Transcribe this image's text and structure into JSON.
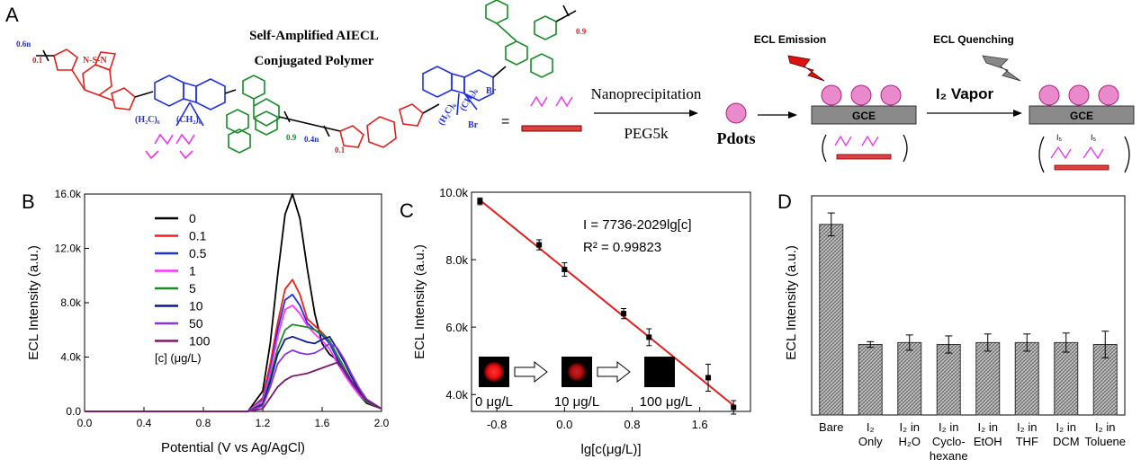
{
  "panelA": {
    "label": "A",
    "polymer_title_line1": "Self-Amplified AIECL",
    "polymer_title_line2": "Conjugated Polymer",
    "subscripts": {
      "n06": "0.6n",
      "p01": "0.1",
      "p09": "0.9",
      "n04": "0.4n",
      "p01b": "0.1",
      "p09b": "0.9"
    },
    "chain_labels": {
      "left1": "(H₂C)₆",
      "left2": "(CH₂)₆",
      "right1": "(CH₂)₆",
      "right2": "(H₂C)₆",
      "br1": "Br",
      "br2": "Br",
      "ring": "N-S-N"
    },
    "equals": "=",
    "step1_top": "Nanoprecipitation",
    "step1_bottom": "PEG5k",
    "pdots": "Pdots",
    "emission": "ECL Emission",
    "quenching": "ECL Quenching",
    "vapor": "I₂ Vapor",
    "gce1": "GCE",
    "gce2": "GCE",
    "i5a": "I₅",
    "i5b": "I₅"
  },
  "panelB": {
    "label": "B",
    "chart_data": {
      "type": "line",
      "xlabel": "Potential (V vs Ag/AgCl)",
      "ylabel": "ECL Intensity (a.u.)",
      "xlim": [
        0.0,
        2.0
      ],
      "ylim": [
        0,
        16000
      ],
      "xticks": [
        "0.0",
        "0.4",
        "0.8",
        "1.2",
        "1.6",
        "2.0"
      ],
      "yticks": [
        "0.0",
        "4.0k",
        "8.0k",
        "12.0k",
        "16.0k"
      ],
      "legend_title": "[c] (μg/L)",
      "x": [
        0.0,
        1.1,
        1.2,
        1.25,
        1.3,
        1.35,
        1.4,
        1.45,
        1.5,
        1.55,
        1.6,
        1.65,
        1.7,
        1.75,
        1.8,
        1.85,
        1.9,
        2.0
      ],
      "series": [
        {
          "name": "0",
          "color": "#000000",
          "values": [
            0,
            0,
            1500,
            5000,
            10000,
            14500,
            16000,
            14200,
            10500,
            7200,
            5000,
            4200,
            3800,
            3000,
            2000,
            1200,
            600,
            200
          ]
        },
        {
          "name": "0.1",
          "color": "#ee2020",
          "values": [
            0,
            0,
            1000,
            3500,
            6500,
            9000,
            9700,
            8600,
            6800,
            6300,
            5800,
            5200,
            4000,
            3000,
            2000,
            1300,
            700,
            200
          ]
        },
        {
          "name": "0.5",
          "color": "#2030dd",
          "values": [
            0,
            0,
            900,
            3000,
            6000,
            8200,
            8600,
            7800,
            6500,
            6000,
            5600,
            5000,
            3900,
            2900,
            2000,
            1300,
            700,
            200
          ]
        },
        {
          "name": "1",
          "color": "#ff33ff",
          "values": [
            0,
            0,
            800,
            2800,
            5500,
            7500,
            7800,
            7200,
            6300,
            5700,
            5200,
            4600,
            3600,
            2700,
            1900,
            1200,
            700,
            200
          ]
        },
        {
          "name": "5",
          "color": "#1a8a2a",
          "values": [
            0,
            0,
            600,
            2400,
            4600,
            6000,
            6400,
            6300,
            6200,
            6000,
            5700,
            5200,
            4200,
            3200,
            2200,
            1400,
            700,
            200
          ]
        },
        {
          "name": "10",
          "color": "#0a1a8a",
          "values": [
            0,
            0,
            500,
            2200,
            4200,
            5300,
            5500,
            5300,
            5100,
            5000,
            5300,
            5500,
            4600,
            3600,
            2500,
            1500,
            800,
            200
          ]
        },
        {
          "name": "50",
          "color": "#8a33dd",
          "values": [
            0,
            0,
            400,
            1800,
            3500,
            4200,
            4500,
            4300,
            4200,
            4300,
            4600,
            5000,
            4700,
            3800,
            2700,
            1700,
            900,
            200
          ]
        },
        {
          "name": "100",
          "color": "#7a1a6a",
          "values": [
            0,
            0,
            200,
            1000,
            1800,
            2300,
            2600,
            2700,
            2800,
            3000,
            3200,
            3400,
            3600,
            3000,
            2200,
            1400,
            800,
            200
          ]
        }
      ]
    }
  },
  "panelC": {
    "label": "C",
    "chart_data": {
      "type": "scatter",
      "xlabel": "lg[c(μg/L)]",
      "ylabel": "ECL Intensity (a.u.)",
      "xlim": [
        -1.1,
        2.2
      ],
      "ylim": [
        3500,
        10000
      ],
      "xticks": [
        "-0.8",
        "0.0",
        "0.8",
        "1.6"
      ],
      "yticks": [
        "4.0k",
        "6.0k",
        "8.0k",
        "10.0k"
      ],
      "x": [
        -1.0,
        -0.3,
        0.0,
        0.7,
        1.0,
        1.7,
        2.0
      ],
      "y": [
        9730,
        8440,
        7710,
        6400,
        5700,
        4500,
        3620
      ],
      "err": [
        100,
        150,
        200,
        150,
        250,
        400,
        200
      ],
      "fit_line": {
        "intercept": 7736,
        "slope": -2029,
        "color": "#e02020"
      },
      "equation": "I = 7736-2029lg[c]",
      "r2": "R² = 0.99823",
      "insets": [
        "0 μg/L",
        "10 μg/L",
        "100 μg/L"
      ]
    }
  },
  "panelD": {
    "label": "D",
    "chart_data": {
      "type": "bar",
      "ylabel": "ECL Intensity (a.u.)",
      "ylim": [
        0,
        1.15
      ],
      "categories": [
        "Bare",
        "I₂ Only",
        "I₂ in H₂O",
        "I₂ in Cyclo-hexane",
        "I₂ in EtOH",
        "I₂ in THF",
        "I₂ in DCM",
        "I₂ in Toluene"
      ],
      "category_lines": [
        [
          "Bare"
        ],
        [
          "I₂",
          "Only"
        ],
        [
          "I₂ in",
          "H₂O"
        ],
        [
          "I₂ in",
          "Cyclo-",
          "hexane"
        ],
        [
          "I₂ in",
          "EtOH"
        ],
        [
          "I₂ in",
          "THF"
        ],
        [
          "I₂ in",
          "DCM"
        ],
        [
          "I₂ in",
          "Toluene"
        ]
      ],
      "values": [
        1.0,
        0.37,
        0.38,
        0.37,
        0.38,
        0.38,
        0.38,
        0.37
      ],
      "err": [
        0.06,
        0.015,
        0.04,
        0.045,
        0.045,
        0.045,
        0.05,
        0.07
      ]
    }
  }
}
